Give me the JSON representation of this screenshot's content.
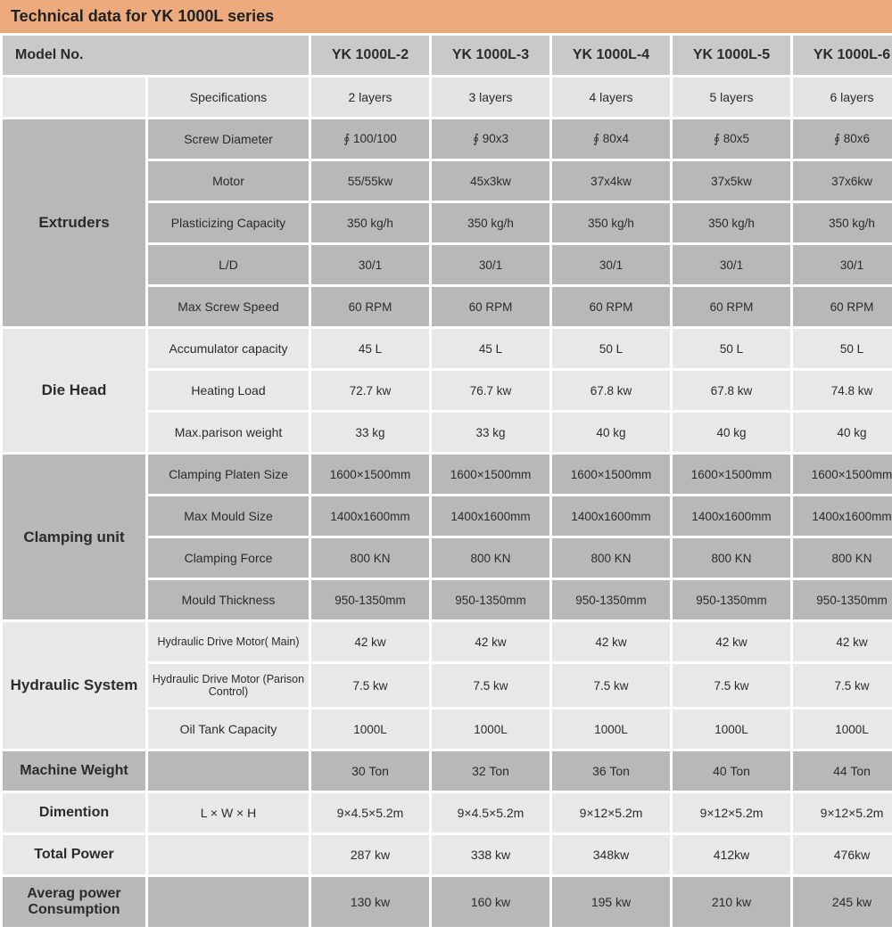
{
  "title": "Technical data for YK 1000L series",
  "colors": {
    "title_bg": "#edab7d",
    "header_bg": "#c9c9c9",
    "group_dark": "#b8b8b8",
    "group_light": "#e8e8e8",
    "cell_light": "#e3e3e3",
    "text": "#2b2b2b"
  },
  "header": {
    "label": "Model No.",
    "models": [
      "YK 1000L-2",
      "YK 1000L-3",
      "YK 1000L-4",
      "YK 1000L-5",
      "YK 1000L-6"
    ]
  },
  "specRow": {
    "label": "Specifications",
    "values": [
      "2 layers",
      "3 layers",
      "4 layers",
      "5 layers",
      "6 layers"
    ]
  },
  "groups": [
    {
      "name": "Extruders",
      "shade": "dark",
      "rows": [
        {
          "label": "Screw Diameter",
          "values": [
            "∮ 100/100",
            "∮ 90x3",
            "∮ 80x4",
            "∮ 80x5",
            "∮ 80x6"
          ]
        },
        {
          "label": "Motor",
          "values": [
            "55/55kw",
            "45x3kw",
            "37x4kw",
            "37x5kw",
            "37x6kw"
          ]
        },
        {
          "label": "Plasticizing Capacity",
          "values": [
            "350 kg/h",
            "350 kg/h",
            "350 kg/h",
            "350 kg/h",
            "350 kg/h"
          ]
        },
        {
          "label": "L/D",
          "values": [
            "30/1",
            "30/1",
            "30/1",
            "30/1",
            "30/1"
          ]
        },
        {
          "label": "Max Screw Speed",
          "values": [
            "60 RPM",
            "60 RPM",
            "60 RPM",
            "60 RPM",
            "60 RPM"
          ]
        }
      ]
    },
    {
      "name": "Die Head",
      "shade": "light",
      "rows": [
        {
          "label": "Accumulator capacity",
          "values": [
            "45 L",
            "45 L",
            "50 L",
            "50 L",
            "50 L"
          ]
        },
        {
          "label": "Heating Load",
          "values": [
            "72.7 kw",
            "76.7 kw",
            "67.8 kw",
            "67.8 kw",
            "74.8 kw"
          ]
        },
        {
          "label": "Max.parison weight",
          "values": [
            "33 kg",
            "33 kg",
            "40 kg",
            "40 kg",
            "40 kg"
          ]
        }
      ]
    },
    {
      "name": "Clamping unit",
      "shade": "dark",
      "rows": [
        {
          "label": "Clamping Platen Size",
          "values": [
            "1600×1500mm",
            "1600×1500mm",
            "1600×1500mm",
            "1600×1500mm",
            "1600×1500mm"
          ]
        },
        {
          "label": "Max Mould Size",
          "values": [
            "1400x1600mm",
            "1400x1600mm",
            "1400x1600mm",
            "1400x1600mm",
            "1400x1600mm"
          ]
        },
        {
          "label": "Clamping Force",
          "values": [
            "800 KN",
            "800 KN",
            "800 KN",
            "800 KN",
            "800 KN"
          ]
        },
        {
          "label": "Mould Thickness",
          "values": [
            "950-1350mm",
            "950-1350mm",
            "950-1350mm",
            "950-1350mm",
            "950-1350mm"
          ]
        }
      ]
    },
    {
      "name": "Hydraulic System",
      "shade": "light",
      "rows": [
        {
          "label": "Hydraulic Drive Motor( Main)",
          "values": [
            "42 kw",
            "42 kw",
            "42 kw",
            "42 kw",
            "42 kw"
          ],
          "small": true
        },
        {
          "label": "Hydraulic Drive Motor (Parison Control)",
          "values": [
            "7.5 kw",
            "7.5 kw",
            "7.5 kw",
            "7.5 kw",
            "7.5 kw"
          ],
          "small": true
        },
        {
          "label": "Oil Tank Capacity",
          "values": [
            "1000L",
            "1000L",
            "1000L",
            "1000L",
            "1000L"
          ]
        }
      ]
    }
  ],
  "singles": [
    {
      "name": "Machine Weight",
      "shade": "dark",
      "label": "",
      "values": [
        "30 Ton",
        "32 Ton",
        "36 Ton",
        "40 Ton",
        "44 Ton"
      ]
    },
    {
      "name": "Dimention",
      "shade": "light",
      "label": "L × W × H",
      "values": [
        "9×4.5×5.2m",
        "9×4.5×5.2m",
        "9×12×5.2m",
        "9×12×5.2m",
        "9×12×5.2m"
      ]
    },
    {
      "name": "Total Power",
      "shade": "light",
      "label": "",
      "values": [
        "287 kw",
        "338 kw",
        "348kw",
        "412kw",
        "476kw"
      ]
    },
    {
      "name": "Averag power Consumption",
      "shade": "dark",
      "label": "",
      "values": [
        "130 kw",
        "160 kw",
        "195 kw",
        "210 kw",
        "245 kw"
      ]
    }
  ]
}
